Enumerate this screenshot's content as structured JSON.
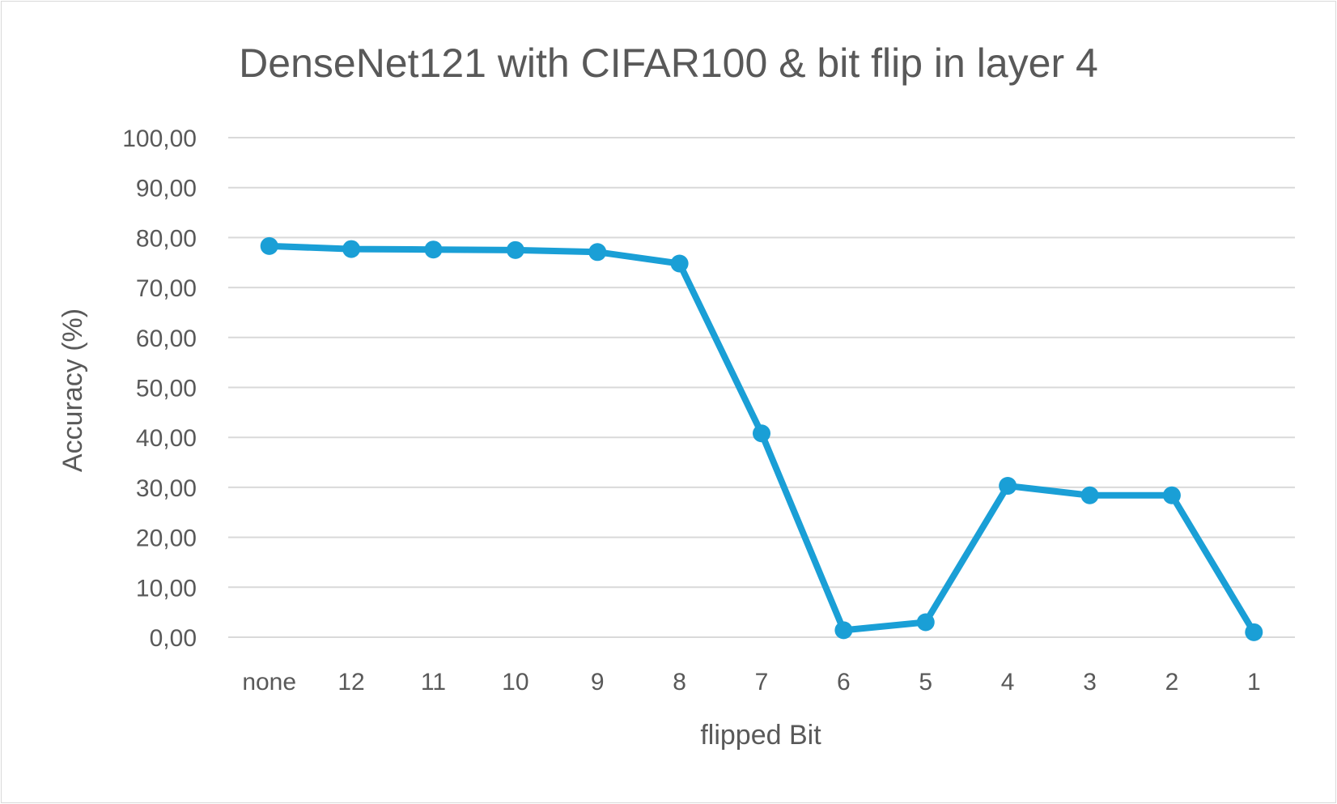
{
  "chart_data": {
    "type": "line",
    "title": "DenseNet121 with CIFAR100 & bit flip in layer 4",
    "xlabel": "flipped Bit",
    "ylabel": "Accuracy (%)",
    "categories": [
      "none",
      "12",
      "11",
      "10",
      "9",
      "8",
      "7",
      "6",
      "5",
      "4",
      "3",
      "2",
      "1"
    ],
    "series": [
      {
        "values": [
          78.3,
          77.7,
          77.6,
          77.5,
          77.1,
          74.8,
          40.8,
          1.4,
          3.0,
          30.3,
          28.4,
          28.4,
          1.0
        ],
        "color": "#1a9fd6"
      }
    ],
    "ylim": [
      0,
      100
    ],
    "yticks": [
      "0,00",
      "10,00",
      "20,00",
      "30,00",
      "40,00",
      "50,00",
      "60,00",
      "70,00",
      "80,00",
      "90,00",
      "100,00"
    ],
    "grid": true,
    "legend": "none"
  }
}
